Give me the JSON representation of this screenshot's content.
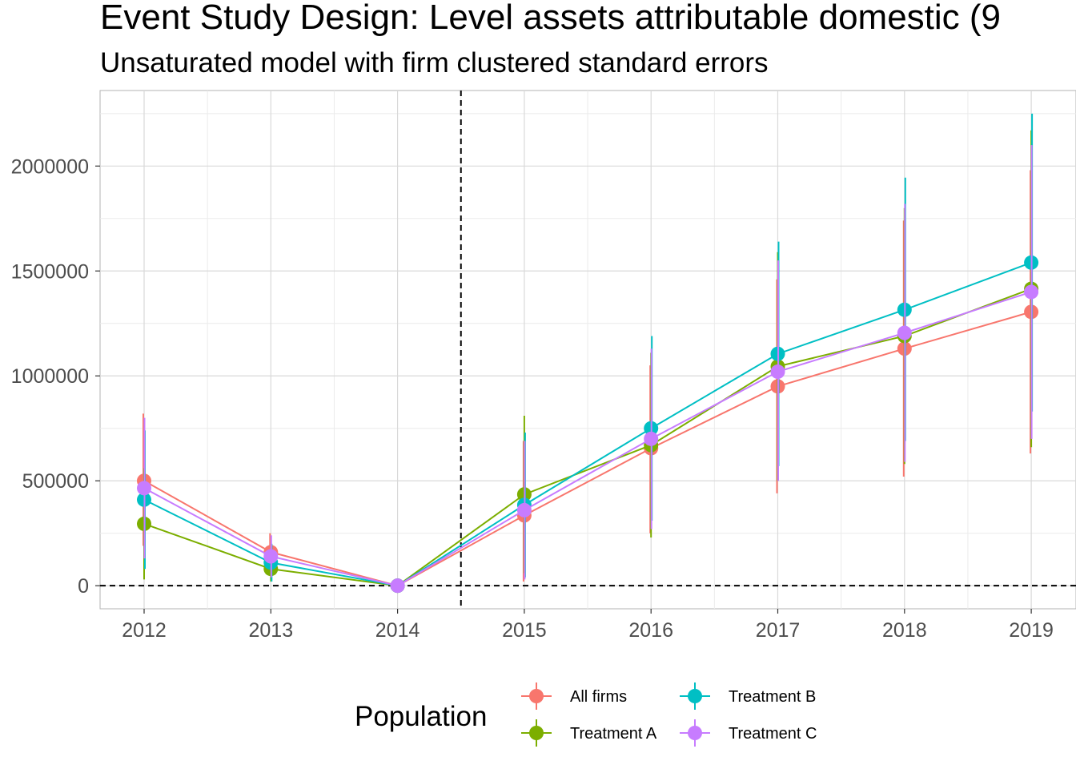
{
  "chart_data": {
    "type": "line",
    "title": "Event Study Design: Level assets attributable domestic  (9",
    "subtitle": "Unsaturated model with firm clustered standard errors",
    "xlabel": "",
    "ylabel": "",
    "categories": [
      "2012",
      "2013",
      "2014",
      "2015",
      "2016",
      "2017",
      "2018",
      "2019"
    ],
    "x_ticks": [
      "2012",
      "2013",
      "2014",
      "2015",
      "2016",
      "2017",
      "2018",
      "2019"
    ],
    "y_ticks": [
      "0",
      "500000",
      "1000000",
      "1500000",
      "2000000"
    ],
    "ylim": [
      -110000,
      2360000
    ],
    "vline_between": [
      "2014",
      "2015"
    ],
    "hline": 0,
    "grid": true,
    "legend_title": "Population",
    "legend_position": "bottom",
    "series": [
      {
        "name": "All firms",
        "color": "#F8766D",
        "values": [
          500000,
          160000,
          0,
          335000,
          655000,
          950000,
          1130000,
          1305000
        ],
        "lower": [
          190000,
          70000,
          0,
          20000,
          250000,
          440000,
          520000,
          630000
        ],
        "upper": [
          820000,
          250000,
          0,
          690000,
          1050000,
          1460000,
          1740000,
          1980000
        ]
      },
      {
        "name": "Treatment A",
        "color": "#7CAE00",
        "values": [
          295000,
          80000,
          0,
          435000,
          670000,
          1045000,
          1190000,
          1415000
        ],
        "lower": [
          30000,
          20000,
          0,
          60000,
          230000,
          500000,
          580000,
          660000
        ],
        "upper": [
          560000,
          140000,
          0,
          810000,
          1110000,
          1590000,
          1800000,
          2170000
        ]
      },
      {
        "name": "Treatment B",
        "color": "#00BFC4",
        "values": [
          410000,
          110000,
          0,
          385000,
          750000,
          1105000,
          1315000,
          1540000
        ],
        "lower": [
          80000,
          20000,
          0,
          40000,
          310000,
          570000,
          690000,
          830000
        ],
        "upper": [
          740000,
          200000,
          0,
          730000,
          1190000,
          1640000,
          1945000,
          2250000
        ]
      },
      {
        "name": "Treatment C",
        "color": "#C77CFF",
        "values": [
          465000,
          140000,
          0,
          360000,
          700000,
          1020000,
          1205000,
          1400000
        ],
        "lower": [
          130000,
          40000,
          0,
          30000,
          270000,
          500000,
          590000,
          700000
        ],
        "upper": [
          800000,
          240000,
          0,
          690000,
          1130000,
          1550000,
          1820000,
          2100000
        ]
      }
    ]
  }
}
